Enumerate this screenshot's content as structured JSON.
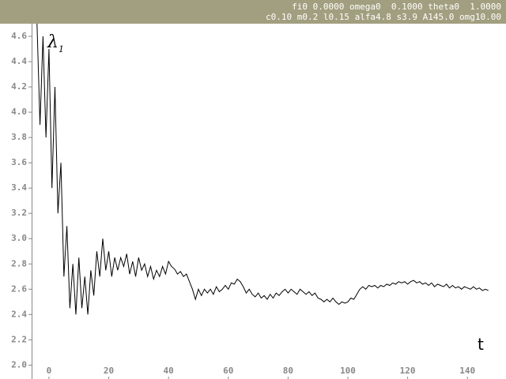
{
  "chart_data": {
    "type": "line",
    "header": [
      "fi0 0.0000 omega0  0.1000 theta0  1.0000",
      "c0.10 m0.2 l0.15 alfa4.8 s3.9 A145.0 omg10.00"
    ],
    "y_label": {
      "symbol": "λ",
      "subscript": "1"
    },
    "x_label": "t",
    "color": "#000000",
    "xlim": [
      -5.8,
      152.9
    ],
    "ylim": [
      1.89,
      4.7
    ],
    "xticks": [
      0,
      20,
      40,
      60,
      80,
      100,
      120,
      140
    ],
    "yticks": [
      {
        "value": 2,
        "label": "2.0"
      },
      2.2,
      2.4,
      2.6,
      2.8,
      {
        "value": 3,
        "label": "3.0"
      },
      3.2,
      3.4,
      3.6,
      3.8,
      {
        "value": 4,
        "label": "4.0"
      },
      4.2,
      4.4,
      4.6
    ],
    "x": [
      -4,
      -3,
      -2,
      -1,
      0,
      1,
      2,
      3,
      4,
      5,
      6,
      7,
      8,
      9,
      10,
      11,
      12,
      13,
      14,
      15,
      16,
      17,
      18,
      19,
      20,
      21,
      22,
      23,
      24,
      25,
      26,
      27,
      28,
      29,
      30,
      31,
      32,
      33,
      34,
      35,
      36,
      37,
      38,
      39,
      40,
      41,
      42,
      43,
      44,
      45,
      46,
      47,
      48,
      49,
      50,
      51,
      52,
      53,
      54,
      55,
      56,
      57,
      58,
      59,
      60,
      61,
      62,
      63,
      64,
      65,
      66,
      67,
      68,
      69,
      70,
      71,
      72,
      73,
      74,
      75,
      76,
      77,
      78,
      79,
      80,
      81,
      82,
      83,
      84,
      85,
      86,
      87,
      88,
      89,
      90,
      91,
      92,
      93,
      94,
      95,
      96,
      97,
      98,
      99,
      100,
      101,
      102,
      103,
      104,
      105,
      106,
      107,
      108,
      109,
      110,
      111,
      112,
      113,
      114,
      115,
      116,
      117,
      118,
      119,
      120,
      121,
      122,
      123,
      124,
      125,
      126,
      127,
      128,
      129,
      130,
      131,
      132,
      133,
      134,
      135,
      136,
      137,
      138,
      139,
      140,
      141,
      142,
      143,
      144,
      145,
      146,
      147
    ],
    "values": [
      4.7,
      3.9,
      4.6,
      3.8,
      4.5,
      3.4,
      4.2,
      3.2,
      3.6,
      2.7,
      3.1,
      2.45,
      2.8,
      2.4,
      2.85,
      2.45,
      2.7,
      2.4,
      2.75,
      2.55,
      2.9,
      2.7,
      3.0,
      2.75,
      2.9,
      2.7,
      2.85,
      2.75,
      2.85,
      2.78,
      2.88,
      2.72,
      2.82,
      2.7,
      2.85,
      2.75,
      2.8,
      2.7,
      2.78,
      2.68,
      2.75,
      2.7,
      2.78,
      2.72,
      2.82,
      2.78,
      2.76,
      2.72,
      2.74,
      2.7,
      2.72,
      2.66,
      2.6,
      2.52,
      2.6,
      2.55,
      2.6,
      2.57,
      2.6,
      2.56,
      2.62,
      2.58,
      2.6,
      2.63,
      2.6,
      2.65,
      2.64,
      2.68,
      2.66,
      2.62,
      2.57,
      2.6,
      2.56,
      2.54,
      2.57,
      2.53,
      2.55,
      2.52,
      2.56,
      2.53,
      2.57,
      2.55,
      2.58,
      2.6,
      2.57,
      2.6,
      2.58,
      2.56,
      2.6,
      2.58,
      2.56,
      2.58,
      2.55,
      2.57,
      2.53,
      2.52,
      2.5,
      2.52,
      2.5,
      2.53,
      2.5,
      2.48,
      2.5,
      2.49,
      2.5,
      2.53,
      2.52,
      2.56,
      2.6,
      2.62,
      2.6,
      2.63,
      2.62,
      2.63,
      2.61,
      2.63,
      2.62,
      2.64,
      2.63,
      2.65,
      2.64,
      2.66,
      2.65,
      2.66,
      2.64,
      2.66,
      2.67,
      2.65,
      2.66,
      2.64,
      2.65,
      2.63,
      2.65,
      2.62,
      2.64,
      2.63,
      2.62,
      2.64,
      2.61,
      2.63,
      2.61,
      2.62,
      2.6,
      2.62,
      2.61,
      2.6,
      2.62,
      2.6,
      2.61,
      2.59,
      2.6,
      2.59
    ]
  }
}
